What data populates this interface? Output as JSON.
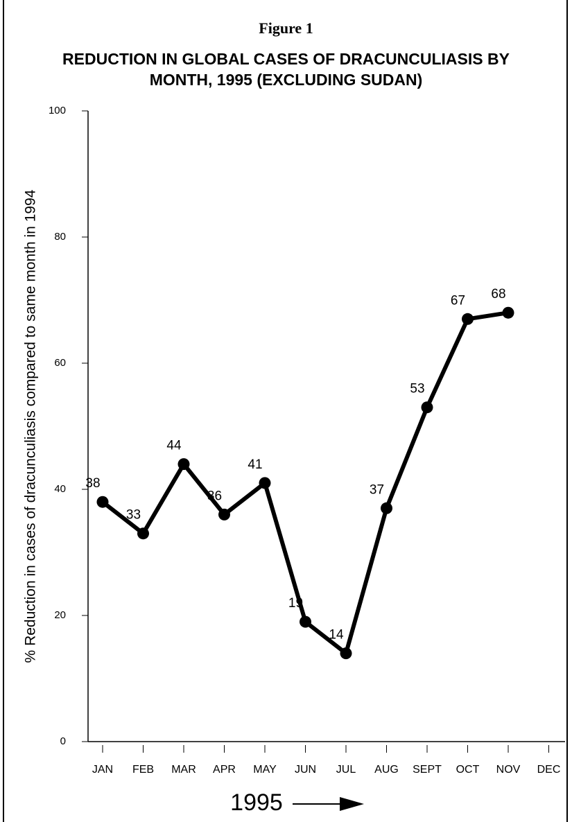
{
  "chart_data": {
    "type": "line",
    "supertitle": "Figure 1",
    "title": "REDUCTION IN GLOBAL CASES OF DRACUNCULIASIS BY MONTH, 1995 (EXCLUDING SUDAN)",
    "y_label": "% Reduction in cases of dracunculiasis compared to same month in 1994",
    "x_label": "1995",
    "categories": [
      "JAN",
      "FEB",
      "MAR",
      "APR",
      "MAY",
      "JUN",
      "JUL",
      "AUG",
      "SEPT",
      "OCT",
      "NOV",
      "DEC"
    ],
    "values": [
      38,
      33,
      44,
      36,
      41,
      19,
      14,
      37,
      53,
      67,
      68,
      null
    ],
    "color": "#000000",
    "ylim": [
      0,
      100
    ],
    "yticks": [
      0,
      20,
      40,
      60,
      80,
      100
    ],
    "grid": false
  }
}
